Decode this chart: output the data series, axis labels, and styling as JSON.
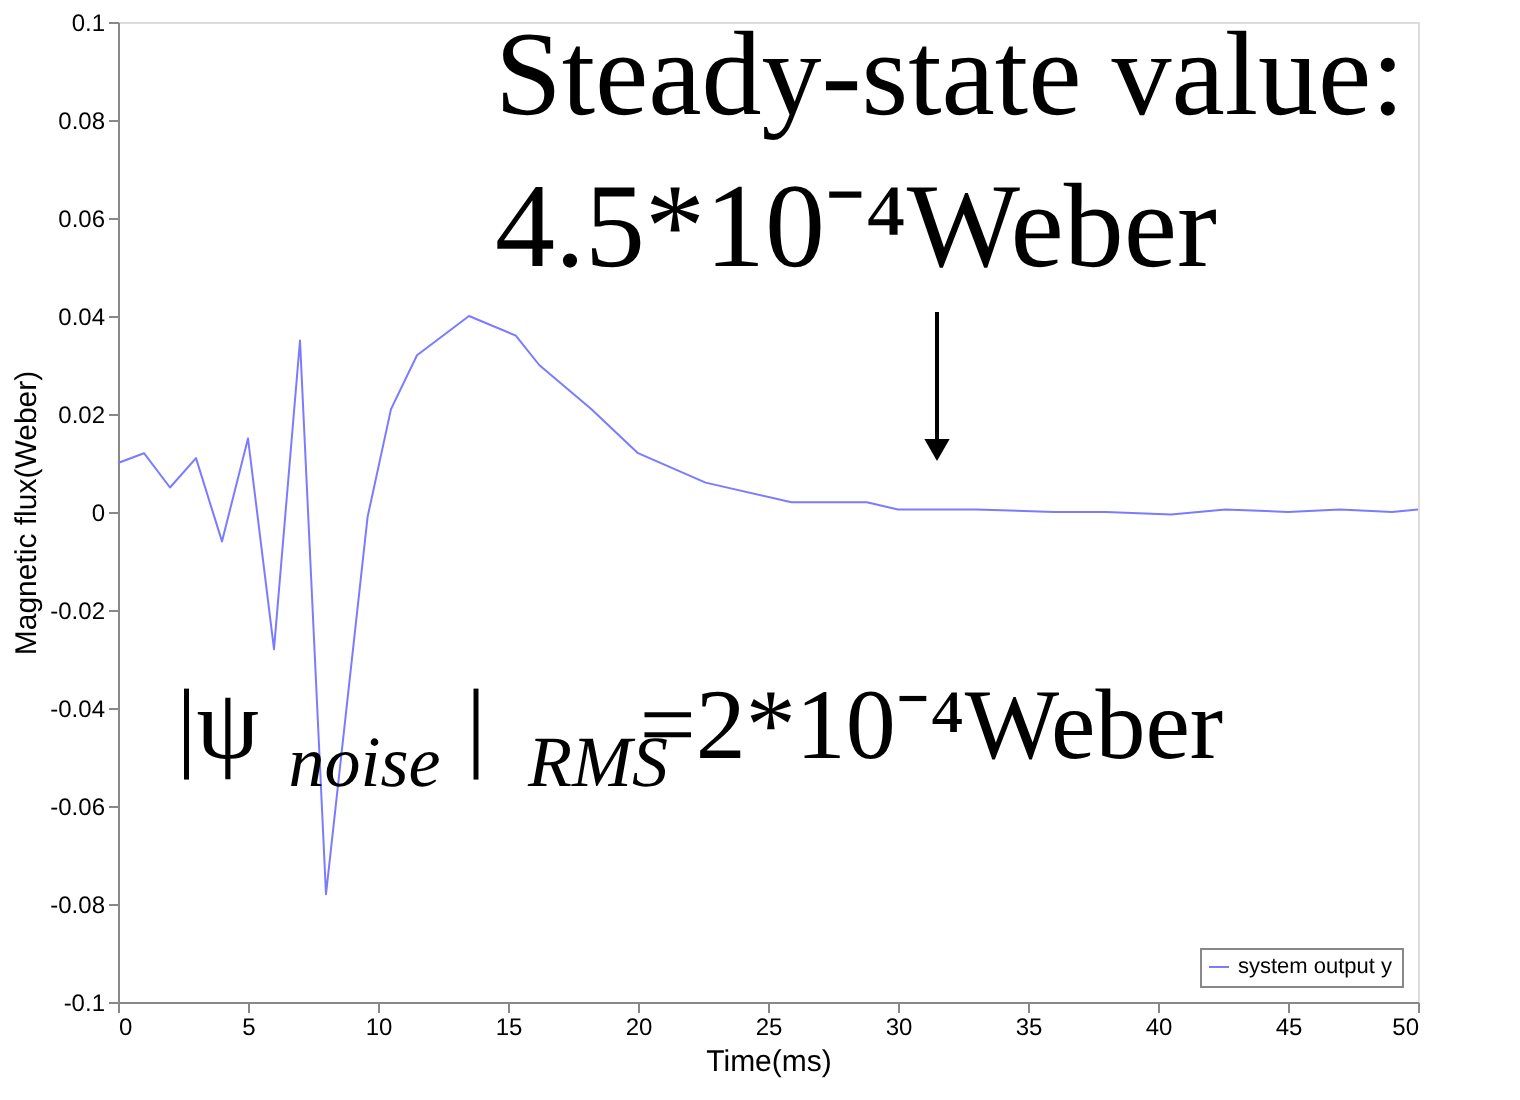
{
  "chart_data": {
    "type": "line",
    "xlabel": "Time(ms)",
    "ylabel": "Magnetic flux(Weber)",
    "x": [
      0,
      1,
      2,
      3,
      4,
      5,
      6,
      7,
      8,
      9.6,
      10.5,
      11.5,
      13.5,
      15.3,
      16.2,
      18.2,
      20,
      22.6,
      25.9,
      28.8,
      30,
      33,
      36,
      38,
      40.5,
      42.6,
      45,
      47,
      49,
      50
    ],
    "series": [
      {
        "name": "system output y",
        "color": "#7b7bff",
        "values": [
          0.01,
          0.012,
          0.005,
          0.011,
          -0.006,
          0.015,
          -0.028,
          0.035,
          -0.078,
          -0.001,
          0.021,
          0.032,
          0.04,
          0.036,
          0.03,
          0.021,
          0.012,
          0.006,
          0.002,
          0.002,
          0.0005,
          0.0005,
          0,
          0,
          -0.0005,
          0.0005,
          0,
          0.0005,
          0,
          0.0005
        ]
      }
    ],
    "xlim": [
      0,
      50
    ],
    "xticks": [
      0,
      5,
      10,
      15,
      20,
      25,
      30,
      35,
      40,
      45,
      50
    ],
    "ylim": [
      -0.1,
      0.1
    ],
    "yticks": [
      -0.1,
      -0.08,
      -0.06,
      -0.04,
      -0.02,
      0,
      0.02,
      0.04,
      0.06,
      0.08,
      0.1
    ],
    "grid": false,
    "legend": "bottom right",
    "marker": "none",
    "line_style": "solid",
    "annotations": [
      "Steady-state value:\n4.5*10⁻⁴Weber",
      "|ψ$_{noise}$|$_{RMS}$=2*10⁻⁴Weber"
    ]
  }
}
